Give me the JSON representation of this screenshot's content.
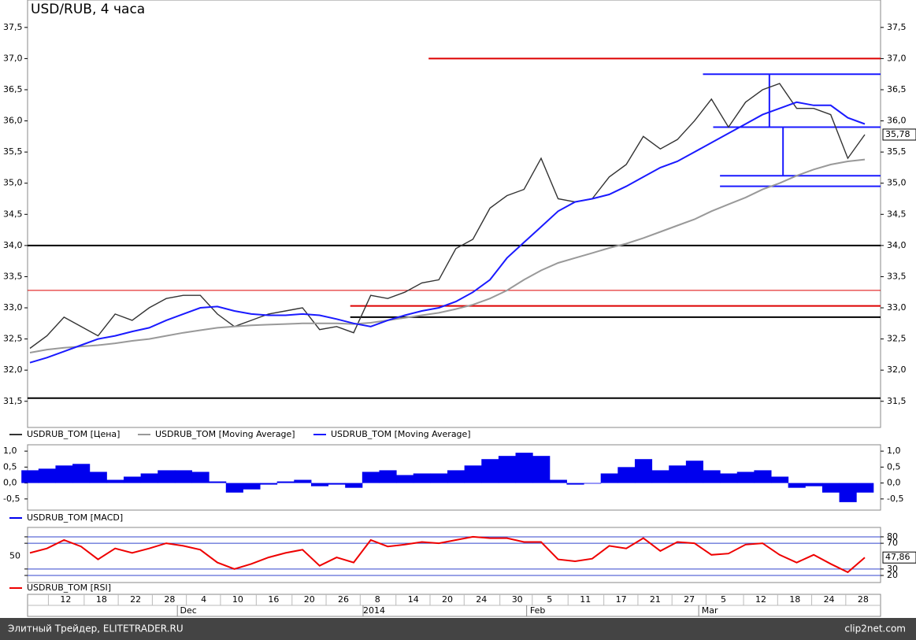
{
  "chart_data": [
    {
      "type": "line",
      "title": "USD/RUB, 4 часа",
      "series": [
        {
          "name": "USDRUB_TOM [Цена]",
          "color": "#333333",
          "values": [
            32.35,
            32.55,
            32.85,
            32.7,
            32.55,
            32.9,
            32.8,
            33.0,
            33.15,
            33.2,
            33.2,
            32.9,
            32.7,
            32.8,
            32.9,
            32.95,
            33.0,
            32.65,
            32.7,
            32.6,
            33.2,
            33.15,
            33.25,
            33.4,
            33.45,
            33.95,
            34.1,
            34.6,
            34.8,
            34.9,
            35.4,
            34.75,
            34.7,
            34.75,
            35.1,
            35.3,
            35.75,
            35.55,
            35.7,
            36.0,
            36.35,
            35.9,
            36.3,
            36.5,
            36.6,
            36.2,
            36.2,
            36.1,
            35.4,
            35.78
          ],
          "value_labels": [
            null,
            null,
            null,
            null,
            null,
            null,
            null,
            null,
            null,
            null,
            null,
            null,
            null,
            null,
            null,
            null,
            null,
            null,
            null,
            null,
            null,
            null,
            null,
            null,
            null,
            null,
            null,
            null,
            null,
            null,
            null,
            null,
            null,
            null,
            null,
            null,
            null,
            null,
            null,
            null,
            null,
            null,
            null,
            null,
            null,
            null,
            null,
            null,
            null,
            "35,78"
          ]
        },
        {
          "name": "USDRUB_TOM [Moving Average]",
          "color": "#999999",
          "values": [
            32.28,
            32.33,
            32.36,
            32.38,
            32.4,
            32.43,
            32.47,
            32.5,
            32.55,
            32.6,
            32.64,
            32.68,
            32.7,
            32.72,
            32.73,
            32.74,
            32.75,
            32.75,
            32.75,
            32.74,
            32.76,
            32.8,
            32.84,
            32.88,
            32.92,
            32.98,
            33.05,
            33.15,
            33.28,
            33.45,
            33.6,
            33.72,
            33.8,
            33.88,
            33.96,
            34.03,
            34.12,
            34.22,
            34.32,
            34.42,
            34.55,
            34.66,
            34.77,
            34.9,
            35.0,
            35.12,
            35.22,
            35.3,
            35.35,
            35.38
          ]
        },
        {
          "name": "USDRUB_TOM [Moving Average]",
          "color": "#1a1aff",
          "values": [
            32.12,
            32.2,
            32.3,
            32.4,
            32.5,
            32.55,
            32.62,
            32.68,
            32.8,
            32.9,
            33.0,
            33.02,
            32.95,
            32.9,
            32.88,
            32.88,
            32.9,
            32.88,
            32.82,
            32.75,
            32.7,
            32.8,
            32.88,
            32.95,
            33.0,
            33.1,
            33.25,
            33.45,
            33.8,
            34.05,
            34.3,
            34.55,
            34.7,
            34.75,
            34.82,
            34.95,
            35.1,
            35.25,
            35.35,
            35.5,
            35.65,
            35.8,
            35.95,
            36.1,
            36.2,
            36.3,
            36.25,
            36.25,
            36.05,
            35.95
          ]
        }
      ],
      "ylim": [
        31.08,
        37.94
      ],
      "yticks": [
        {
          "value": 31.5,
          "label": "31,5"
        },
        {
          "value": 32.0,
          "label": "32,0"
        },
        {
          "value": 32.5,
          "label": "32,5"
        },
        {
          "value": 33.0,
          "label": "33,0"
        },
        {
          "value": 33.5,
          "label": "33,5"
        },
        {
          "value": 34.0,
          "label": "34,0"
        },
        {
          "value": 34.5,
          "label": "34,5"
        },
        {
          "value": 35.0,
          "label": "35,0"
        },
        {
          "value": 35.5,
          "label": "35,5"
        },
        {
          "value": 36.0,
          "label": "36,0"
        },
        {
          "value": 36.5,
          "label": "36,5"
        },
        {
          "value": 37.0,
          "label": "37,0"
        },
        {
          "value": 37.5,
          "label": "37,5"
        }
      ],
      "levels": [
        {
          "value": 37.0,
          "color": "#dd0000",
          "from": 23.4
        },
        {
          "value": 34.0,
          "color": "#000000"
        },
        {
          "value": 31.55,
          "color": "#000000"
        },
        {
          "value": 33.28,
          "color": "#dd0000"
        },
        {
          "value": 33.03,
          "color": "#dd0000",
          "from": 18.8
        },
        {
          "value": 32.85,
          "color": "#000000",
          "from": 18.8
        },
        {
          "value": 36.75,
          "color": "#1a1aff",
          "from": 39.5
        },
        {
          "value": 35.9,
          "color": "#1a1aff",
          "from": 40.1
        },
        {
          "value": 35.12,
          "color": "#1a1aff",
          "from": 40.5
        },
        {
          "value": 34.95,
          "color": "#1a1aff",
          "from": 40.5
        }
      ],
      "verticals": [
        {
          "x": 43.4,
          "from": 36.75,
          "to": 35.9,
          "color": "#1a1aff"
        },
        {
          "x": 44.2,
          "from": 35.9,
          "to": 35.12,
          "color": "#1a1aff"
        }
      ]
    },
    {
      "type": "bar",
      "series": [
        {
          "name": "USDRUB_TOM [MACD]",
          "color": "#0000ee",
          "values": [
            0.4,
            0.45,
            0.55,
            0.6,
            0.35,
            0.1,
            0.2,
            0.3,
            0.4,
            0.4,
            0.35,
            0.05,
            -0.3,
            -0.2,
            -0.05,
            0.05,
            0.1,
            -0.1,
            -0.05,
            -0.15,
            0.35,
            0.4,
            0.25,
            0.3,
            0.3,
            0.4,
            0.55,
            0.75,
            0.85,
            0.95,
            0.85,
            0.1,
            -0.05,
            -0.02,
            0.3,
            0.5,
            0.75,
            0.4,
            0.55,
            0.7,
            0.4,
            0.3,
            0.35,
            0.4,
            0.2,
            -0.15,
            -0.1,
            -0.3,
            -0.6,
            -0.3
          ]
        }
      ],
      "ylim": [
        -0.85,
        1.2
      ],
      "yticks": [
        {
          "value": -0.5,
          "label": "-0,5"
        },
        {
          "value": 0.0,
          "label": "0,0"
        },
        {
          "value": 0.5,
          "label": "0,5"
        },
        {
          "value": 1.0,
          "label": "1,0"
        }
      ]
    },
    {
      "type": "line",
      "series": [
        {
          "name": "USDRUB_TOM [RSI]",
          "color": "#ee0000",
          "values": [
            55,
            62,
            75,
            65,
            45,
            62,
            55,
            62,
            70,
            66,
            60,
            40,
            30,
            38,
            48,
            55,
            60,
            35,
            48,
            40,
            75,
            65,
            68,
            72,
            70,
            75,
            80,
            78,
            78,
            72,
            72,
            45,
            42,
            46,
            66,
            62,
            78,
            58,
            72,
            70,
            52,
            54,
            68,
            70,
            52,
            40,
            52,
            38,
            25,
            47.86
          ],
          "value_labels": [
            null,
            null,
            null,
            null,
            null,
            null,
            null,
            null,
            null,
            null,
            null,
            null,
            null,
            null,
            null,
            null,
            null,
            null,
            null,
            null,
            null,
            null,
            null,
            null,
            null,
            null,
            null,
            null,
            null,
            null,
            null,
            null,
            null,
            null,
            null,
            null,
            null,
            null,
            null,
            null,
            null,
            null,
            null,
            null,
            null,
            null,
            null,
            null,
            null,
            "47,86"
          ]
        }
      ],
      "ylim": [
        9,
        94.6
      ],
      "yticks": [
        20,
        30,
        70,
        80
      ],
      "left_yticks": [
        50
      ]
    }
  ],
  "x_axis": {
    "xlim": [
      0,
      49
    ],
    "xticks": [
      {
        "value": 2.1,
        "label": "12"
      },
      {
        "value": 4.2,
        "label": "18"
      },
      {
        "value": 6.2,
        "label": "22"
      },
      {
        "value": 8.2,
        "label": "28"
      },
      {
        "value": 10.2,
        "label": "4"
      },
      {
        "value": 12.2,
        "label": "10"
      },
      {
        "value": 14.3,
        "label": "16"
      },
      {
        "value": 16.4,
        "label": "20"
      },
      {
        "value": 18.4,
        "label": "26"
      },
      {
        "value": 20.4,
        "label": "8"
      },
      {
        "value": 22.5,
        "label": "14"
      },
      {
        "value": 24.5,
        "label": "20"
      },
      {
        "value": 26.5,
        "label": "24"
      },
      {
        "value": 28.6,
        "label": "30"
      },
      {
        "value": 30.5,
        "label": "5"
      },
      {
        "value": 32.6,
        "label": "11"
      },
      {
        "value": 34.7,
        "label": "17"
      },
      {
        "value": 36.7,
        "label": "21"
      },
      {
        "value": 38.7,
        "label": "27"
      },
      {
        "value": 40.7,
        "label": "5"
      },
      {
        "value": 42.9,
        "label": "12"
      },
      {
        "value": 44.9,
        "label": "18"
      },
      {
        "value": 46.9,
        "label": "24"
      },
      {
        "value": 48.9,
        "label": "28"
      }
    ],
    "months": [
      {
        "value": 9.3,
        "label": "Dec"
      },
      {
        "value": 20.2,
        "label": "2014"
      },
      {
        "value": 29.8,
        "label": "Feb"
      },
      {
        "value": 39.9,
        "label": "Mar"
      }
    ]
  },
  "footer": {
    "left": "Элитный Трейдер, ELITETRADER.RU",
    "right": "clip2net.com"
  }
}
